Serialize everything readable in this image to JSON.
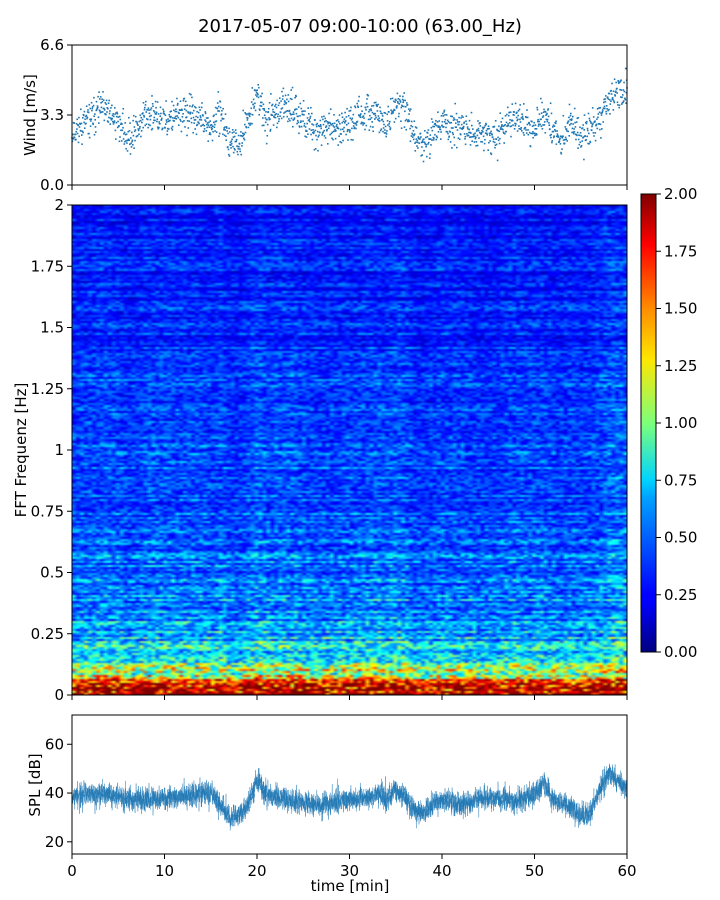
{
  "title": "2017-05-07 09:00-10:00 (63.00_Hz)",
  "chart_data": [
    {
      "type": "scatter",
      "name": "wind",
      "ylabel": "Wind [m/s]",
      "xlim": [
        0,
        60
      ],
      "ylim": [
        0.0,
        6.6
      ],
      "yticks": [
        "0.0",
        "3.3",
        "6.6"
      ],
      "color": "#1f77b4",
      "anchors": [
        [
          0,
          2.5
        ],
        [
          2,
          3.1
        ],
        [
          3,
          3.6
        ],
        [
          5,
          3.0
        ],
        [
          6,
          2.2
        ],
        [
          7,
          2.6
        ],
        [
          8,
          3.4
        ],
        [
          10,
          3.0
        ],
        [
          12,
          3.4
        ],
        [
          14,
          3.1
        ],
        [
          15,
          2.5
        ],
        [
          16,
          3.6
        ],
        [
          17,
          1.9
        ],
        [
          18,
          2.0
        ],
        [
          19,
          3.0
        ],
        [
          20,
          4.4
        ],
        [
          21,
          3.0
        ],
        [
          22,
          3.5
        ],
        [
          24,
          3.6
        ],
        [
          25,
          3.2
        ],
        [
          26,
          2.6
        ],
        [
          28,
          2.7
        ],
        [
          30,
          3.0
        ],
        [
          32,
          3.3
        ],
        [
          33,
          3.4
        ],
        [
          34,
          2.8
        ],
        [
          35,
          3.7
        ],
        [
          36,
          3.6
        ],
        [
          37,
          2.4
        ],
        [
          38,
          1.9
        ],
        [
          39,
          2.4
        ],
        [
          40,
          2.9
        ],
        [
          42,
          2.7
        ],
        [
          44,
          2.4
        ],
        [
          45,
          2.3
        ],
        [
          46,
          2.2
        ],
        [
          47,
          2.9
        ],
        [
          48,
          3.2
        ],
        [
          50,
          2.7
        ],
        [
          51,
          3.3
        ],
        [
          52,
          2.6
        ],
        [
          53,
          2.1
        ],
        [
          54,
          2.9
        ],
        [
          55,
          2.2
        ],
        [
          56,
          2.6
        ],
        [
          57,
          3.0
        ],
        [
          58,
          4.0
        ],
        [
          59,
          4.4
        ],
        [
          60,
          4.3
        ]
      ]
    },
    {
      "type": "heatmap",
      "name": "spectrogram",
      "ylabel": "FFT Frequenz [Hz]",
      "xlim": [
        0,
        60
      ],
      "ylim": [
        0,
        2
      ],
      "yticks": [
        "0",
        "0.25",
        "0.5",
        "0.75",
        "1",
        "1.25",
        "1.5",
        "1.75",
        "2"
      ],
      "colormap": "jet",
      "colorbar": {
        "range": [
          0.0,
          2.0
        ],
        "ticks": [
          "0.00",
          "0.25",
          "0.50",
          "0.75",
          "1.00",
          "1.25",
          "1.50",
          "1.75",
          "2.00"
        ]
      },
      "freq_profile": [
        [
          0.0,
          1.9
        ],
        [
          0.05,
          1.2
        ],
        [
          0.1,
          0.85
        ],
        [
          0.2,
          0.6
        ],
        [
          0.3,
          0.5
        ],
        [
          0.45,
          0.45
        ],
        [
          0.6,
          0.4
        ],
        [
          0.8,
          0.37
        ],
        [
          1.0,
          0.35
        ],
        [
          1.3,
          0.31
        ],
        [
          1.6,
          0.28
        ],
        [
          2.0,
          0.25
        ]
      ]
    },
    {
      "type": "line",
      "name": "spl",
      "ylabel": "SPL [dB]",
      "xlabel": "time [min]",
      "xlim": [
        0,
        60
      ],
      "ylim": [
        15,
        72
      ],
      "yticks": [
        "20",
        "40",
        "60"
      ],
      "xticks": [
        "0",
        "10",
        "20",
        "30",
        "40",
        "50",
        "60"
      ],
      "color": "#1f77b4",
      "anchors": [
        [
          0,
          38
        ],
        [
          2,
          40
        ],
        [
          4,
          39
        ],
        [
          6,
          38
        ],
        [
          8,
          37
        ],
        [
          10,
          38
        ],
        [
          12,
          39
        ],
        [
          14,
          40
        ],
        [
          15,
          40
        ],
        [
          16,
          35
        ],
        [
          17,
          30
        ],
        [
          18,
          31
        ],
        [
          19,
          35
        ],
        [
          20,
          45
        ],
        [
          21,
          40
        ],
        [
          22,
          38
        ],
        [
          24,
          37
        ],
        [
          26,
          35
        ],
        [
          28,
          36
        ],
        [
          30,
          37
        ],
        [
          32,
          38
        ],
        [
          33,
          40
        ],
        [
          34,
          37
        ],
        [
          35,
          42
        ],
        [
          36,
          38
        ],
        [
          37,
          33
        ],
        [
          38,
          32
        ],
        [
          39,
          35
        ],
        [
          40,
          37
        ],
        [
          42,
          35
        ],
        [
          44,
          38
        ],
        [
          46,
          38
        ],
        [
          48,
          36
        ],
        [
          50,
          40
        ],
        [
          51,
          44
        ],
        [
          52,
          37
        ],
        [
          54,
          34
        ],
        [
          55,
          30
        ],
        [
          56,
          32
        ],
        [
          57,
          40
        ],
        [
          58,
          48
        ],
        [
          59,
          45
        ],
        [
          60,
          42
        ]
      ]
    }
  ]
}
